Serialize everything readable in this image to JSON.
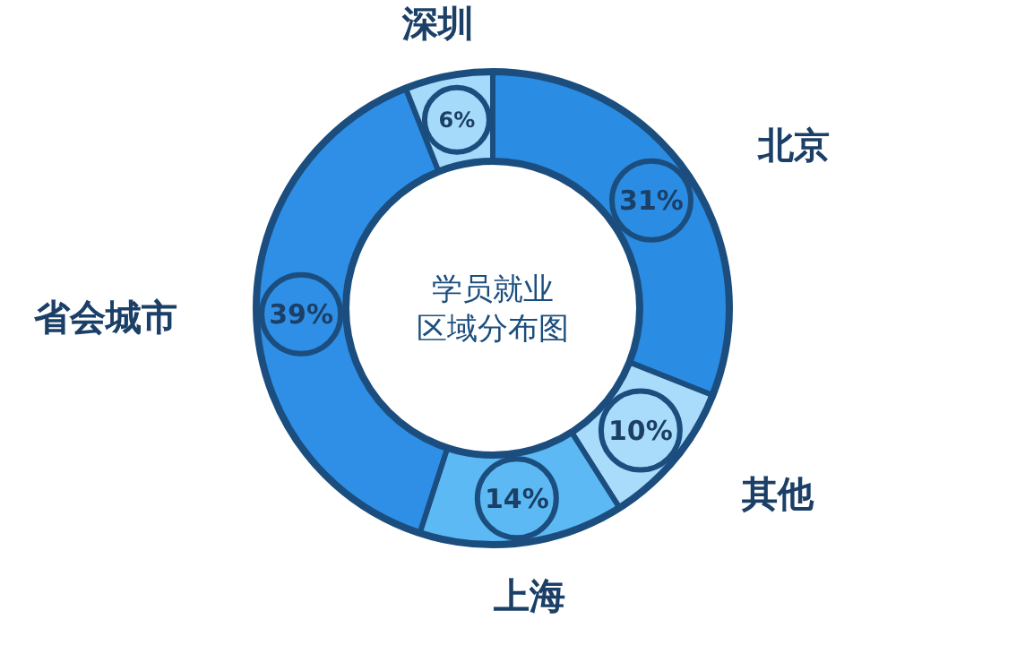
{
  "chart_data": {
    "type": "donut",
    "title": "学员就业区域分布图",
    "categories": [
      "北京",
      "其他",
      "上海",
      "省会城市",
      "深圳"
    ],
    "values": [
      31,
      10,
      14,
      39,
      6
    ],
    "value_labels": [
      "31%",
      "10%",
      "14%",
      "39%",
      "6%"
    ],
    "colors": [
      "#2b8ce3",
      "#a9dcfb",
      "#5cb9f4",
      "#2f8fe6",
      "#a6dafb"
    ]
  }
}
